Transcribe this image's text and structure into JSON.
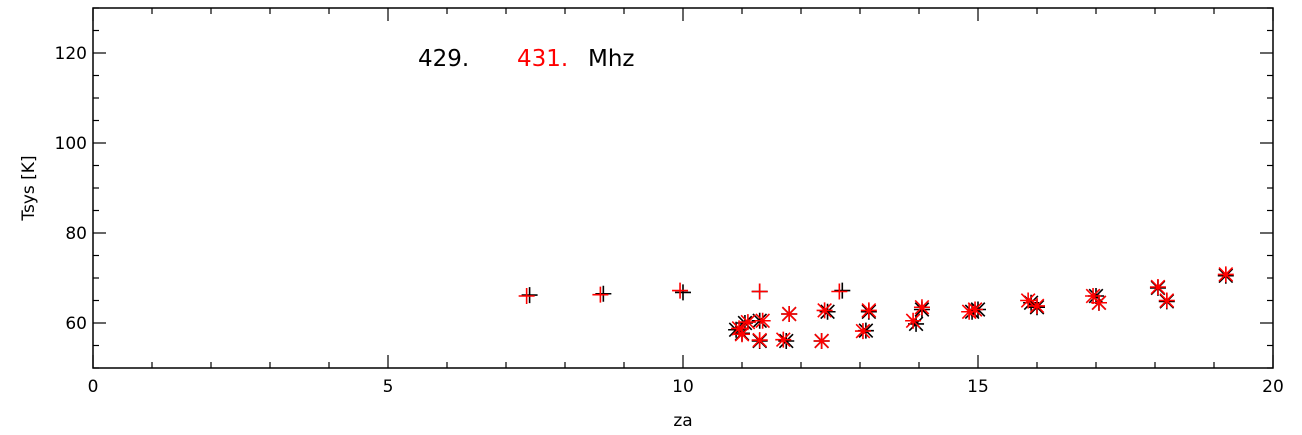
{
  "chart_data": {
    "type": "scatter",
    "xlabel": "za",
    "ylabel": "Tsys [K]",
    "xlim": [
      0,
      20
    ],
    "ylim": [
      50,
      130
    ],
    "x_ticks": [
      0,
      5,
      10,
      15,
      20
    ],
    "y_ticks": [
      60,
      80,
      100,
      120
    ],
    "grid": false,
    "legend": {
      "items": [
        {
          "text": "429.",
          "color": "#000000"
        },
        {
          "text": "431.",
          "color": "#ff0000"
        },
        {
          "text": "Mhz",
          "color": "#000000"
        }
      ]
    },
    "series": [
      {
        "color": "#000000",
        "points": [
          {
            "x": 7.4,
            "y": 66.2,
            "m": "plus"
          },
          {
            "x": 8.65,
            "y": 66.5,
            "m": "plus"
          },
          {
            "x": 10.0,
            "y": 66.8,
            "m": "plus"
          },
          {
            "x": 11.3,
            "y": 67.0,
            "m": "plus"
          },
          {
            "x": 12.7,
            "y": 67.2,
            "m": "plus"
          },
          {
            "x": 10.9,
            "y": 58.5,
            "m": "star"
          },
          {
            "x": 11.0,
            "y": 57.7,
            "m": "star"
          },
          {
            "x": 11.05,
            "y": 60.0,
            "m": "star"
          },
          {
            "x": 11.3,
            "y": 56.0,
            "m": "star"
          },
          {
            "x": 11.3,
            "y": 60.5,
            "m": "star"
          },
          {
            "x": 11.75,
            "y": 56.0,
            "m": "star"
          },
          {
            "x": 11.8,
            "y": 62.0,
            "m": "star"
          },
          {
            "x": 12.35,
            "y": 56.0,
            "m": "star"
          },
          {
            "x": 12.45,
            "y": 62.5,
            "m": "star"
          },
          {
            "x": 13.1,
            "y": 58.3,
            "m": "star"
          },
          {
            "x": 13.15,
            "y": 62.5,
            "m": "star"
          },
          {
            "x": 13.95,
            "y": 59.8,
            "m": "star"
          },
          {
            "x": 14.05,
            "y": 63.0,
            "m": "star"
          },
          {
            "x": 14.9,
            "y": 62.5,
            "m": "star"
          },
          {
            "x": 15.0,
            "y": 63.0,
            "m": "star"
          },
          {
            "x": 15.9,
            "y": 64.5,
            "m": "star"
          },
          {
            "x": 16.0,
            "y": 63.5,
            "m": "star"
          },
          {
            "x": 17.0,
            "y": 66.0,
            "m": "star"
          },
          {
            "x": 17.05,
            "y": 64.5,
            "m": "star"
          },
          {
            "x": 18.05,
            "y": 67.8,
            "m": "star"
          },
          {
            "x": 18.2,
            "y": 64.8,
            "m": "star"
          },
          {
            "x": 19.2,
            "y": 70.5,
            "m": "star"
          }
        ]
      },
      {
        "color": "#ff0000",
        "points": [
          {
            "x": 7.35,
            "y": 66.0,
            "m": "plus"
          },
          {
            "x": 8.6,
            "y": 66.3,
            "m": "plus"
          },
          {
            "x": 9.95,
            "y": 67.2,
            "m": "plus"
          },
          {
            "x": 11.3,
            "y": 67.0,
            "m": "plus"
          },
          {
            "x": 12.65,
            "y": 67.0,
            "m": "plus"
          },
          {
            "x": 10.95,
            "y": 58.8,
            "m": "star"
          },
          {
            "x": 11.0,
            "y": 57.5,
            "m": "star"
          },
          {
            "x": 11.1,
            "y": 60.2,
            "m": "star"
          },
          {
            "x": 11.3,
            "y": 56.2,
            "m": "star"
          },
          {
            "x": 11.35,
            "y": 60.5,
            "m": "star"
          },
          {
            "x": 11.7,
            "y": 56.3,
            "m": "star"
          },
          {
            "x": 11.8,
            "y": 62.0,
            "m": "star"
          },
          {
            "x": 12.35,
            "y": 56.0,
            "m": "star"
          },
          {
            "x": 12.4,
            "y": 62.8,
            "m": "star"
          },
          {
            "x": 13.05,
            "y": 58.2,
            "m": "star"
          },
          {
            "x": 13.15,
            "y": 62.8,
            "m": "star"
          },
          {
            "x": 13.9,
            "y": 60.5,
            "m": "star"
          },
          {
            "x": 14.05,
            "y": 63.5,
            "m": "star"
          },
          {
            "x": 14.85,
            "y": 62.5,
            "m": "star"
          },
          {
            "x": 14.95,
            "y": 63.0,
            "m": "star"
          },
          {
            "x": 15.85,
            "y": 65.0,
            "m": "star"
          },
          {
            "x": 16.0,
            "y": 63.8,
            "m": "star"
          },
          {
            "x": 16.95,
            "y": 66.0,
            "m": "star"
          },
          {
            "x": 17.05,
            "y": 64.5,
            "m": "star"
          },
          {
            "x": 18.05,
            "y": 68.0,
            "m": "star"
          },
          {
            "x": 18.2,
            "y": 65.0,
            "m": "star"
          },
          {
            "x": 19.2,
            "y": 70.8,
            "m": "star"
          }
        ]
      }
    ]
  }
}
